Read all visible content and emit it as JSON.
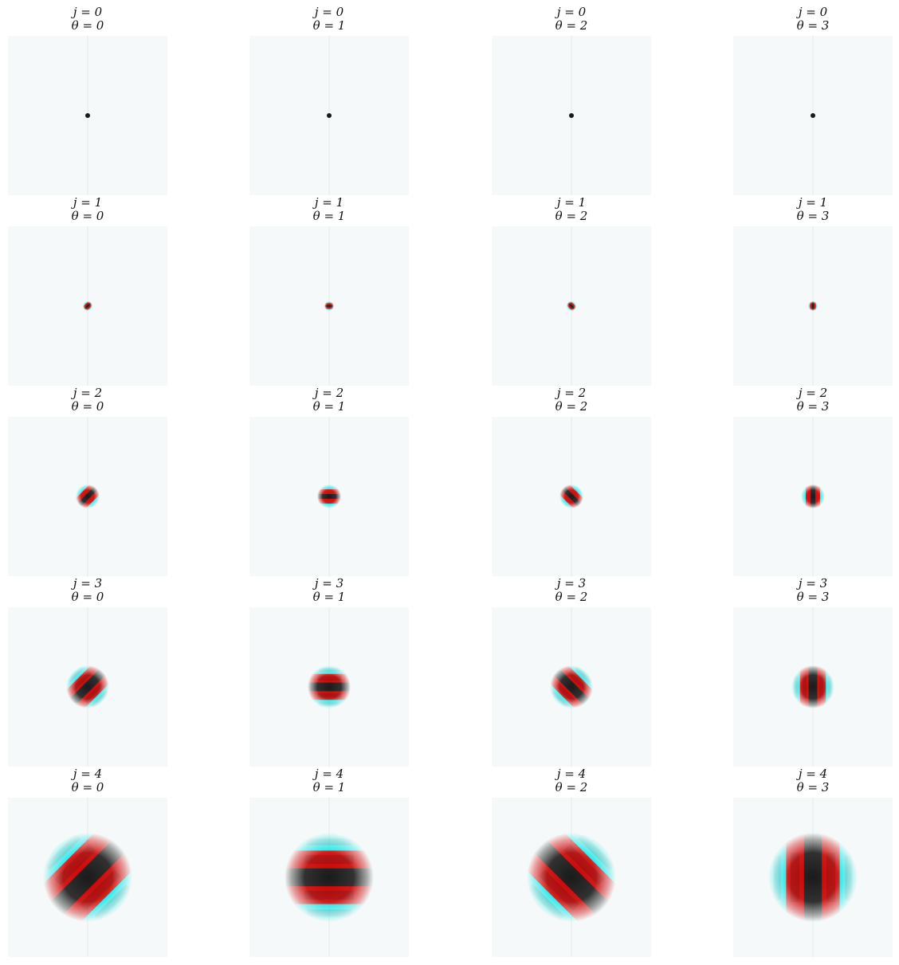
{
  "grid": {
    "rows": [
      {
        "j_label": "j = 0",
        "cells": [
          {
            "theta_label": "θ = 0",
            "theta": 0
          },
          {
            "theta_label": "θ = 1",
            "theta": 1
          },
          {
            "theta_label": "θ = 2",
            "theta": 2
          },
          {
            "theta_label": "θ = 3",
            "theta": 3
          }
        ]
      },
      {
        "j_label": "j = 1",
        "cells": [
          {
            "theta_label": "θ = 0",
            "theta": 0
          },
          {
            "theta_label": "θ = 1",
            "theta": 1
          },
          {
            "theta_label": "θ = 2",
            "theta": 2
          },
          {
            "theta_label": "θ = 3",
            "theta": 3
          }
        ]
      },
      {
        "j_label": "j = 2",
        "cells": [
          {
            "theta_label": "θ = 0",
            "theta": 0
          },
          {
            "theta_label": "θ = 1",
            "theta": 1
          },
          {
            "theta_label": "θ = 2",
            "theta": 2
          },
          {
            "theta_label": "θ = 3",
            "theta": 3
          }
        ]
      },
      {
        "j_label": "j = 3",
        "cells": [
          {
            "theta_label": "θ = 0",
            "theta": 0
          },
          {
            "theta_label": "θ = 1",
            "theta": 1
          },
          {
            "theta_label": "θ = 2",
            "theta": 2
          },
          {
            "theta_label": "θ = 3",
            "theta": 3
          }
        ]
      },
      {
        "j_label": "j = 4",
        "cells": [
          {
            "theta_label": "θ = 0",
            "theta": 0
          },
          {
            "theta_label": "θ = 1",
            "theta": 1
          },
          {
            "theta_label": "θ = 2",
            "theta": 2
          },
          {
            "theta_label": "θ = 3",
            "theta": 3
          }
        ]
      }
    ]
  },
  "colors": {
    "positive": "#cc0000",
    "negative": "#00e5e5",
    "center_dark": "#1a1a1a",
    "background": "#f6f9f9"
  }
}
